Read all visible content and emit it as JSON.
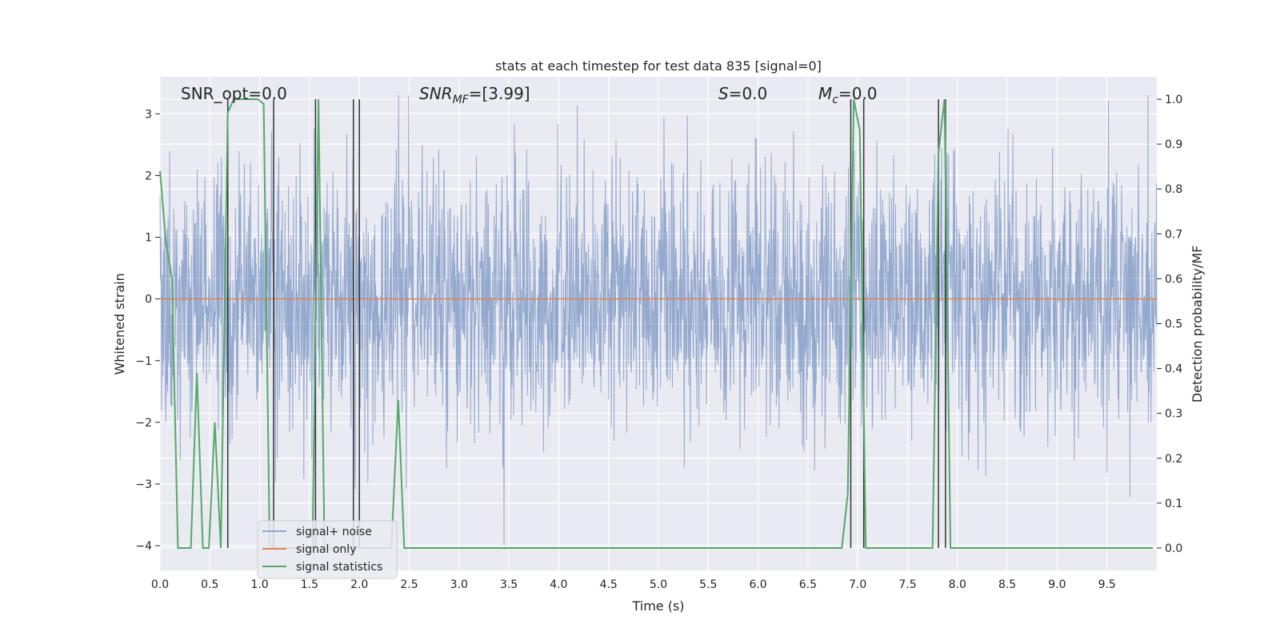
{
  "chart_data": {
    "type": "line",
    "title": "stats at each timestep for test data 835 [signal=0]",
    "xlabel": "Time (s)",
    "ylabel": "Whitened strain",
    "y2label": "Detection probability/MF",
    "xlim": [
      0.0,
      10.0
    ],
    "ylim": [
      -4.4,
      3.6
    ],
    "y2lim": [
      -0.05,
      1.05
    ],
    "x_ticks": [
      "0.0",
      "0.5",
      "1.0",
      "1.5",
      "2.0",
      "2.5",
      "3.0",
      "3.5",
      "4.0",
      "4.5",
      "5.0",
      "5.5",
      "6.0",
      "6.5",
      "7.0",
      "7.5",
      "8.0",
      "8.5",
      "9.0",
      "9.5"
    ],
    "y_ticks": [
      "3",
      "2",
      "1",
      "0",
      "−1",
      "−2",
      "−3",
      "−4"
    ],
    "y2_ticks": [
      "1.0",
      "0.9",
      "0.8",
      "0.7",
      "0.6",
      "0.5",
      "0.4",
      "0.3",
      "0.2",
      "0.1",
      "0.0"
    ],
    "grid": true,
    "legend_position": "lower-left",
    "annotations": {
      "snr_opt": "SNR_opt=0.0",
      "snr_mf_base": "SNR",
      "snr_mf_sub": "MF",
      "snr_mf_value": "=[3.99]",
      "s_sym": "S",
      "s_value": "=0.0",
      "mc_base": "M",
      "mc_sub": "c",
      "mc_value": "=0.0"
    },
    "series": [
      {
        "name": "signal+ noise",
        "color": "#4c72b0",
        "axis": "left",
        "style": "noise band, approx. N(0,1) with peaks to ±3.3"
      },
      {
        "name": "signal only",
        "color": "#dd8452",
        "axis": "left",
        "x": [
          0.0,
          10.0
        ],
        "y": [
          0.0,
          0.0
        ]
      },
      {
        "name": "signal statistics",
        "color": "#55a868",
        "axis": "right",
        "x": [
          0.0,
          0.06,
          0.12,
          0.18,
          0.25,
          0.31,
          0.37,
          0.43,
          0.49,
          0.55,
          0.61,
          0.68,
          0.74,
          0.8,
          0.86,
          0.92,
          0.98,
          1.04,
          1.1,
          1.16,
          1.22,
          1.29,
          1.35,
          1.41,
          1.47,
          1.53,
          1.59,
          1.65,
          1.71,
          1.77,
          1.84,
          1.9,
          1.96,
          2.02,
          2.08,
          2.14,
          2.2,
          2.26,
          2.32,
          2.39,
          2.45,
          2.51,
          2.57,
          2.63,
          3.0,
          4.0,
          5.0,
          6.0,
          6.5,
          6.84,
          6.9,
          6.96,
          7.02,
          7.08,
          7.14,
          7.2,
          7.26,
          7.32,
          7.38,
          7.45,
          7.51,
          7.57,
          7.63,
          7.69,
          7.75,
          7.81,
          7.87,
          7.93,
          8.0,
          9.0,
          9.96
        ],
        "y": [
          0.84,
          0.68,
          0.6,
          0.0,
          0.0,
          0.0,
          0.39,
          0.0,
          0.0,
          0.28,
          0.0,
          0.97,
          1.0,
          1.0,
          1.0,
          1.0,
          1.0,
          0.99,
          0.0,
          0.0,
          0.0,
          0.0,
          0.0,
          0.0,
          0.0,
          0.0,
          1.0,
          0.0,
          0.0,
          0.0,
          0.0,
          0.0,
          0.0,
          0.0,
          0.0,
          0.0,
          0.0,
          0.0,
          0.0,
          0.33,
          0.0,
          0.0,
          0.0,
          0.0,
          0.0,
          0.0,
          0.0,
          0.0,
          0.0,
          0.0,
          0.12,
          1.0,
          0.93,
          0.0,
          0.0,
          0.0,
          0.0,
          0.0,
          0.0,
          0.0,
          0.0,
          0.0,
          0.0,
          0.0,
          0.0,
          0.88,
          1.0,
          0.0,
          0.0,
          0.0,
          0.0
        ]
      }
    ],
    "vertical_markers": {
      "color": "#333333",
      "x": [
        0.68,
        1.14,
        1.56,
        1.94,
        2.0,
        6.93,
        7.06,
        7.81,
        7.88
      ]
    }
  }
}
